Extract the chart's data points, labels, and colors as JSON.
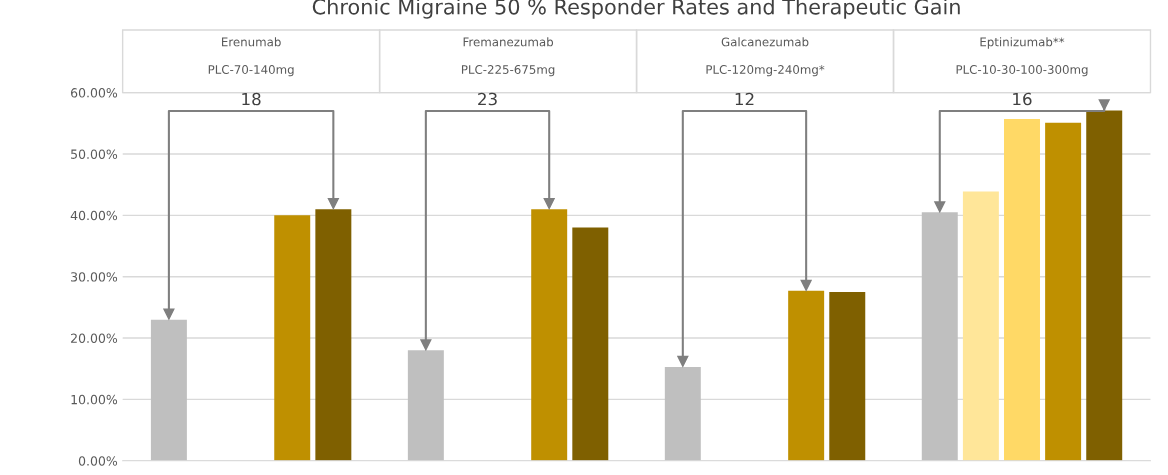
{
  "chart_data": {
    "type": "bar",
    "title": "Chronic Migraine 50 % Responder Rates and Therapeutic Gain",
    "categories": [
      "Erenumab\nPLC-70-140mg",
      "Fremanezumab\nPLC-225-675mg",
      "Galcanezumab\nPLC-120mg-240mg*",
      "Eptinizumab**\nPLC-10-30-100-300mg"
    ],
    "series": [
      {
        "color": "#bfbfbf",
        "values": [
          23,
          18,
          15.3,
          40.5
        ]
      },
      {
        "color": "#ffe699",
        "values": [
          null,
          null,
          null,
          43.9
        ]
      },
      {
        "color": "#ffd966",
        "values": [
          null,
          null,
          null,
          55.7
        ]
      },
      {
        "color": "#bf9000",
        "values": [
          40,
          41,
          27.7,
          55.1
        ]
      },
      {
        "color": "#7f6000",
        "values": [
          41,
          38,
          27.5,
          57.1
        ]
      }
    ],
    "ylim": [
      0,
      60
    ],
    "yticks": [
      {
        "value": 0,
        "label": "0.00%"
      },
      {
        "value": 10,
        "label": "10.00%"
      },
      {
        "value": 20,
        "label": "20.00%"
      },
      {
        "value": 30,
        "label": "30.00%"
      },
      {
        "value": 40,
        "label": "40.00%"
      },
      {
        "value": 50,
        "label": "50.00%"
      },
      {
        "value": 60,
        "label": "60.00%"
      }
    ],
    "grid": "y",
    "annotations": [
      "18",
      "23",
      "12",
      "16"
    ]
  }
}
